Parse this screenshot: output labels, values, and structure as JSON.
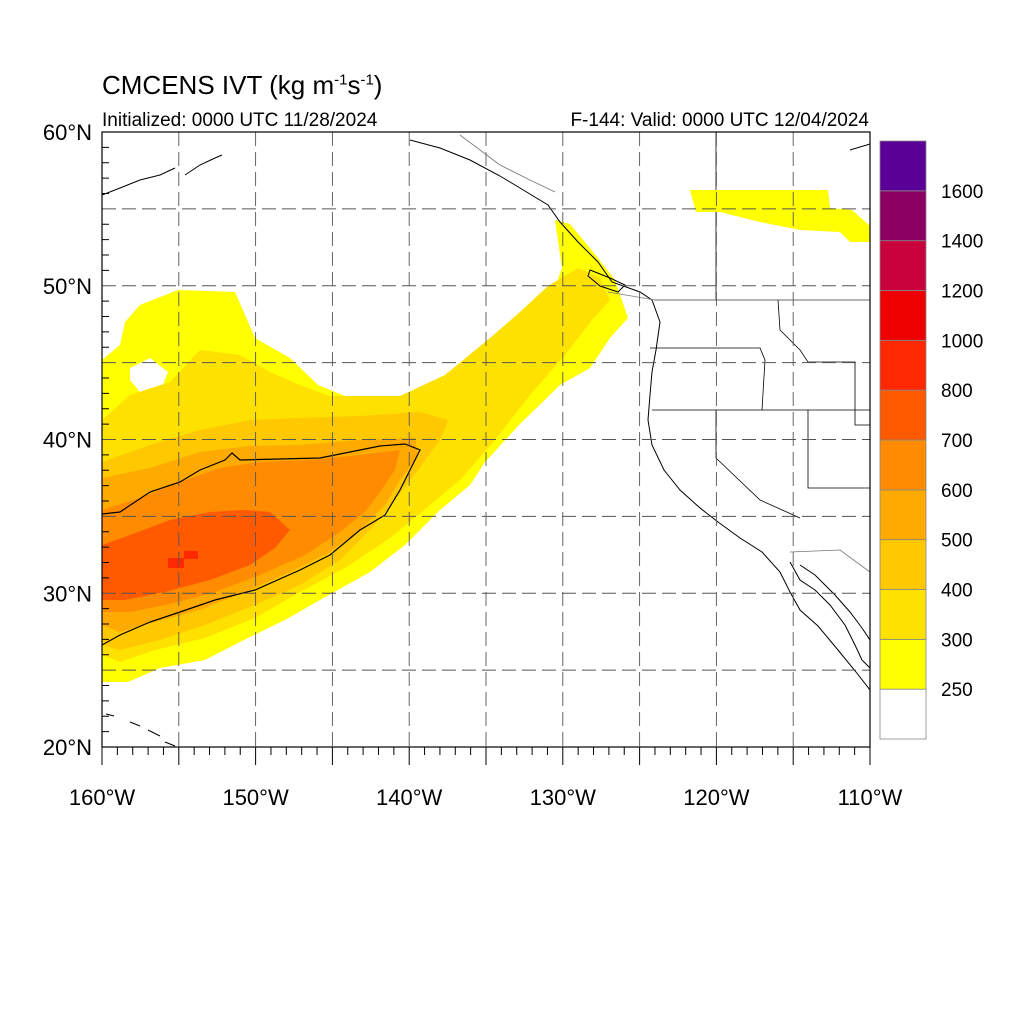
{
  "title": {
    "text": "CMCENS IVT (kg m",
    "exp1": "-1",
    "mid": "s",
    "exp2": "-1",
    "close": ")"
  },
  "init_label": "Initialized: 0000 UTC 11/28/2024",
  "valid_label": "F-144: Valid: 0000 UTC 12/04/2024",
  "axes": {
    "lon_range": [
      -160,
      -110
    ],
    "lat_range": [
      20,
      60
    ],
    "lon_ticks": [
      {
        "v": -160,
        "label": "160°W"
      },
      {
        "v": -150,
        "label": "150°W"
      },
      {
        "v": -140,
        "label": "140°W"
      },
      {
        "v": -130,
        "label": "130°W"
      },
      {
        "v": -120,
        "label": "120°W"
      },
      {
        "v": -110,
        "label": "110°W"
      }
    ],
    "lat_ticks": [
      {
        "v": 20,
        "label": "20°N"
      },
      {
        "v": 30,
        "label": "30°N"
      },
      {
        "v": 40,
        "label": "40°N"
      },
      {
        "v": 50,
        "label": "50°N"
      },
      {
        "v": 60,
        "label": "60°N"
      }
    ],
    "grid": true
  },
  "colorbar": {
    "levels": [
      "250",
      "300",
      "400",
      "500",
      "600",
      "700",
      "800",
      "1000",
      "1200",
      "1400",
      "1600"
    ],
    "colors": [
      "#ffffff",
      "#ffff00",
      "#ffe100",
      "#ffc800",
      "#ffaa00",
      "#ff8c00",
      "#ff5a00",
      "#ff2800",
      "#ee0000",
      "#c8003c",
      "#8c0064",
      "#5a0096"
    ]
  }
}
